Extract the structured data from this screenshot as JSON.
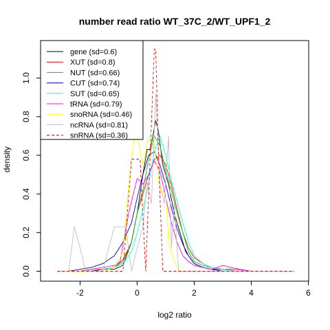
{
  "chart_data": {
    "type": "line",
    "title": "number read ratio WT_37C_2/WT_UPF1_2",
    "xlabel": "log2 ratio",
    "ylabel": "density",
    "xlim": [
      -3.0,
      6.0
    ],
    "ylim": [
      0.0,
      1.2
    ],
    "xticks": [
      -2,
      0,
      2,
      4,
      6
    ],
    "yticks": [
      0.0,
      0.2,
      0.4,
      0.6,
      0.8,
      1.0
    ],
    "grid": false,
    "legend_position": "top-left",
    "series": [
      {
        "name": "gene (sd=0.6)",
        "color": "#000000",
        "dash": false,
        "x": [
          -2.8,
          -2.4,
          -2.0,
          -1.6,
          -1.2,
          -0.8,
          -0.5,
          -0.2,
          0.0,
          0.2,
          0.35,
          0.45,
          0.55,
          0.65,
          0.75,
          0.9,
          1.1,
          1.3,
          1.5,
          1.7,
          2.0,
          2.3,
          2.6,
          3.0,
          3.5,
          4.0,
          5.0,
          5.5
        ],
        "y": [
          0.0,
          0.0,
          0.0,
          0.0,
          0.01,
          0.01,
          0.03,
          0.15,
          0.3,
          0.5,
          0.63,
          0.63,
          0.7,
          0.78,
          0.72,
          0.55,
          0.45,
          0.3,
          0.2,
          0.1,
          0.04,
          0.02,
          0.01,
          0.01,
          0.0,
          0.0,
          0.0,
          0.0
        ]
      },
      {
        "name": "XUT (sd=0.8)",
        "color": "#ff0000",
        "dash": false,
        "x": [
          -2.8,
          -2.4,
          -2.0,
          -1.6,
          -1.2,
          -0.8,
          -0.5,
          -0.2,
          0.0,
          0.2,
          0.4,
          0.6,
          0.8,
          1.0,
          1.2,
          1.4,
          1.6,
          1.8,
          2.0,
          2.3,
          2.6,
          3.0,
          3.5,
          4.0,
          5.0,
          5.5
        ],
        "y": [
          0.0,
          0.0,
          0.0,
          0.01,
          0.01,
          0.02,
          0.06,
          0.15,
          0.3,
          0.4,
          0.5,
          0.58,
          0.6,
          0.55,
          0.45,
          0.32,
          0.2,
          0.12,
          0.07,
          0.04,
          0.02,
          0.01,
          0.01,
          0.0,
          0.0,
          0.0
        ]
      },
      {
        "name": "NUT (sd=0.66)",
        "color": "#00cc00",
        "dash": false,
        "x": [
          -2.8,
          -2.4,
          -2.0,
          -1.6,
          -1.2,
          -0.8,
          -0.5,
          -0.2,
          0.0,
          0.2,
          0.4,
          0.6,
          0.8,
          1.0,
          1.2,
          1.4,
          1.6,
          1.8,
          2.0,
          2.3,
          2.6,
          3.0,
          3.5,
          4.0,
          5.0,
          5.5
        ],
        "y": [
          0.0,
          0.0,
          0.0,
          0.01,
          0.01,
          0.02,
          0.05,
          0.15,
          0.3,
          0.42,
          0.58,
          0.7,
          0.65,
          0.52,
          0.42,
          0.3,
          0.2,
          0.1,
          0.05,
          0.03,
          0.02,
          0.01,
          0.0,
          0.0,
          0.0,
          0.0
        ]
      },
      {
        "name": "CUT (sd=0.74)",
        "color": "#0000cc",
        "dash": false,
        "x": [
          -2.8,
          -2.4,
          -2.0,
          -1.6,
          -1.2,
          -0.8,
          -0.5,
          -0.2,
          0.0,
          0.2,
          0.4,
          0.6,
          0.8,
          1.0,
          1.2,
          1.4,
          1.6,
          1.8,
          2.0,
          2.3,
          2.6,
          3.0,
          3.5,
          4.0,
          5.0,
          5.5
        ],
        "y": [
          0.0,
          0.0,
          0.01,
          0.02,
          0.04,
          0.08,
          0.15,
          0.25,
          0.38,
          0.5,
          0.6,
          0.62,
          0.55,
          0.45,
          0.33,
          0.22,
          0.14,
          0.08,
          0.04,
          0.02,
          0.01,
          0.0,
          0.0,
          0.0,
          0.0,
          0.0
        ]
      },
      {
        "name": "SUT (sd=0.65)",
        "color": "#00ffff",
        "dash": false,
        "x": [
          -2.8,
          -2.4,
          -2.0,
          -1.6,
          -1.2,
          -0.8,
          -0.5,
          -0.2,
          0.0,
          0.2,
          0.4,
          0.6,
          0.8,
          1.0,
          1.2,
          1.4,
          1.6,
          1.8,
          2.0,
          2.3,
          2.6,
          3.0,
          3.5,
          4.0,
          5.0,
          5.5
        ],
        "y": [
          0.0,
          0.0,
          0.0,
          0.01,
          0.01,
          0.02,
          0.04,
          0.1,
          0.2,
          0.32,
          0.45,
          0.62,
          0.7,
          0.6,
          0.47,
          0.36,
          0.25,
          0.15,
          0.08,
          0.04,
          0.02,
          0.01,
          0.0,
          0.0,
          0.0,
          0.0
        ]
      },
      {
        "name": "tRNA (sd=0.79)",
        "color": "#ff00ff",
        "dash": false,
        "x": [
          -2.8,
          -2.4,
          -2.0,
          -1.6,
          -1.2,
          -0.8,
          -0.6,
          -0.3,
          0.0,
          0.2,
          0.4,
          0.6,
          0.8,
          1.0,
          1.2,
          1.4,
          1.6,
          1.8,
          2.0,
          2.3,
          2.6,
          3.0,
          3.3,
          3.6,
          4.0,
          5.0,
          5.5
        ],
        "y": [
          0.0,
          0.0,
          0.0,
          0.01,
          0.02,
          0.03,
          0.05,
          0.3,
          0.48,
          0.45,
          0.5,
          0.57,
          0.52,
          0.38,
          0.25,
          0.15,
          0.08,
          0.05,
          0.03,
          0.02,
          0.01,
          0.03,
          0.02,
          0.01,
          0.0,
          0.0,
          0.0
        ]
      },
      {
        "name": "snoRNA (sd=0.46)",
        "color": "#ffff00",
        "dash": false,
        "x": [
          -2.8,
          -1.2,
          -0.8,
          -0.5,
          -0.3,
          -0.1,
          0.0,
          0.2,
          0.4,
          0.6,
          0.8,
          1.0,
          1.1,
          1.3,
          1.5,
          5.5
        ],
        "y": [
          0.0,
          0.0,
          0.02,
          0.1,
          0.45,
          0.7,
          0.7,
          0.55,
          0.7,
          0.65,
          0.42,
          0.4,
          0.15,
          0.05,
          0.0,
          0.0
        ]
      },
      {
        "name": "ncRNA (sd=0.81)",
        "color": "#bebebe",
        "dash": false,
        "x": [
          -2.8,
          -2.4,
          -2.2,
          -2.0,
          -1.8,
          -1.6,
          -1.4,
          -1.2,
          -1.0,
          -0.8,
          -0.6,
          -0.4,
          -0.2,
          0.0,
          0.2,
          0.35,
          0.5,
          0.65,
          0.8,
          0.95,
          1.1,
          1.2,
          1.3,
          1.45,
          1.6,
          5.5
        ],
        "y": [
          0.0,
          0.0,
          0.23,
          0.12,
          0.0,
          0.0,
          0.0,
          0.0,
          0.12,
          0.23,
          0.23,
          0.23,
          0.0,
          0.12,
          0.23,
          0.46,
          0.35,
          0.92,
          0.46,
          0.35,
          0.7,
          0.12,
          0.35,
          0.0,
          0.0,
          0.0
        ]
      },
      {
        "name": "snRNA (sd=0.36)",
        "color": "#ff0000",
        "dash": true,
        "x": [
          -2.8,
          -1.0,
          -0.5,
          -0.2,
          0.1,
          0.3,
          0.45,
          0.6,
          0.65,
          0.75,
          0.9,
          1.0,
          5.5
        ],
        "y": [
          0.0,
          0.0,
          0.0,
          0.58,
          0.58,
          0.0,
          0.58,
          1.15,
          1.15,
          0.58,
          0.0,
          0.0,
          0.0
        ]
      }
    ]
  }
}
